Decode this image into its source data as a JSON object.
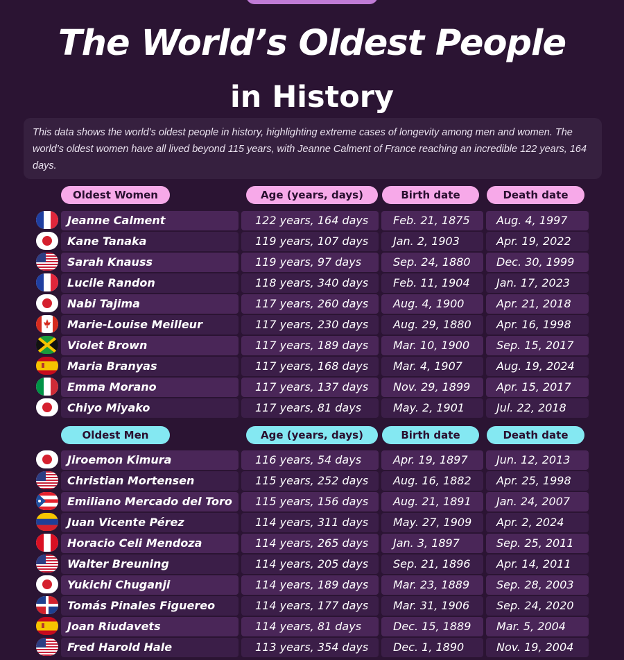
{
  "title": "The World’s Oldest People",
  "subtitle": "in History",
  "description": "This data shows the world’s oldest people in history, highlighting extreme cases of longevity among men and women. The world’s oldest women have all lived beyond 115 years, with Jeanne Calment of France reaching an incredible 122 years, 164 days.",
  "women_headers": {
    "name": "Oldest Women",
    "age": "Age (years, days)",
    "birth": "Birth date",
    "death": "Death date"
  },
  "men_headers": {
    "name": "Oldest  Men",
    "age": "Age (years, days)",
    "birth": "Birth date",
    "death": "Death date"
  },
  "women": [
    {
      "flag": "france-flag-icon",
      "name": "Jeanne Calment",
      "age": "122 years, 164 days",
      "birth": "Feb. 21, 1875",
      "death": "Aug. 4, 1997"
    },
    {
      "flag": "japan-flag-icon",
      "name": "Kane Tanaka",
      "age": "119 years, 107 days",
      "birth": "Jan. 2, 1903",
      "death": "Apr. 19, 2022"
    },
    {
      "flag": "usa-flag-icon",
      "name": "Sarah Knauss",
      "age": "119 years, 97 days",
      "birth": "Sep. 24, 1880",
      "death": "Dec. 30, 1999"
    },
    {
      "flag": "france-flag-icon",
      "name": "Lucile Randon",
      "age": "118 years, 340 days",
      "birth": "Feb. 11, 1904",
      "death": "Jan. 17, 2023"
    },
    {
      "flag": "japan-flag-icon",
      "name": "Nabi Tajima",
      "age": "117 years, 260 days",
      "birth": "Aug. 4, 1900",
      "death": "Apr. 21, 2018"
    },
    {
      "flag": "canada-flag-icon",
      "name": "Marie-Louise Meilleur",
      "age": "117 years, 230 days",
      "birth": "Aug. 29, 1880",
      "death": "Apr. 16, 1998"
    },
    {
      "flag": "jamaica-flag-icon",
      "name": "Violet Brown",
      "age": "117 years, 189 days",
      "birth": "Mar. 10, 1900",
      "death": "Sep. 15, 2017"
    },
    {
      "flag": "spain-flag-icon",
      "name": "Maria Branyas",
      "age": "117 years, 168 days",
      "birth": "Mar. 4, 1907",
      "death": "Aug. 19, 2024"
    },
    {
      "flag": "italy-flag-icon",
      "name": "Emma Morano",
      "age": "117 years, 137 days",
      "birth": "Nov. 29, 1899",
      "death": "Apr. 15, 2017"
    },
    {
      "flag": "japan-flag-icon",
      "name": "Chiyo Miyako",
      "age": "117 years, 81 days",
      "birth": "May. 2, 1901",
      "death": "Jul. 22, 2018"
    }
  ],
  "men": [
    {
      "flag": "japan-flag-icon",
      "name": "Jiroemon Kimura",
      "age": "116 years, 54 days",
      "birth": "Apr. 19, 1897",
      "death": "Jun. 12, 2013"
    },
    {
      "flag": "usa-flag-icon",
      "name": "Christian Mortensen",
      "age": "115 years, 252 days",
      "birth": "Aug. 16, 1882",
      "death": "Apr. 25, 1998"
    },
    {
      "flag": "puerto-rico-flag-icon",
      "name": "Emiliano Mercado del Toro",
      "age": "115 years, 156 days",
      "birth": "Aug. 21, 1891",
      "death": "Jan. 24, 2007"
    },
    {
      "flag": "venezuela-flag-icon",
      "name": "Juan Vicente Pérez",
      "age": "114 years, 311 days",
      "birth": "May. 27, 1909",
      "death": "Apr. 2, 2024"
    },
    {
      "flag": "peru-flag-icon",
      "name": "Horacio Celi Mendoza",
      "age": "114 years, 265 days",
      "birth": "Jan. 3, 1897",
      "death": "Sep. 25, 2011"
    },
    {
      "flag": "usa-flag-icon",
      "name": "Walter Breuning",
      "age": "114 years, 205 days",
      "birth": "Sep. 21, 1896",
      "death": "Apr. 14, 2011"
    },
    {
      "flag": "japan-flag-icon",
      "name": "Yukichi Chuganji",
      "age": "114 years, 189 days",
      "birth": "Mar. 23, 1889",
      "death": "Sep. 28, 2003"
    },
    {
      "flag": "dominican-republic-flag-icon",
      "name": "Tomás Pinales Figuereo",
      "age": "114 years, 177 days",
      "birth": "Mar. 31, 1906",
      "death": "Sep. 24, 2020"
    },
    {
      "flag": "spain-flag-icon",
      "name": "Joan Riudavets",
      "age": "114 years, 81 days",
      "birth": "Dec. 15, 1889",
      "death": "Mar. 5, 2004"
    },
    {
      "flag": "usa-flag-icon",
      "name": "Fred Harold Hale",
      "age": "113 years, 354 days",
      "birth": "Dec. 1, 1890",
      "death": "Nov. 19, 2004"
    }
  ],
  "colors": {
    "background": "#2b1433",
    "women_accent": "#f7a9e9",
    "men_accent": "#84e8f2",
    "row": "#4a2658"
  }
}
